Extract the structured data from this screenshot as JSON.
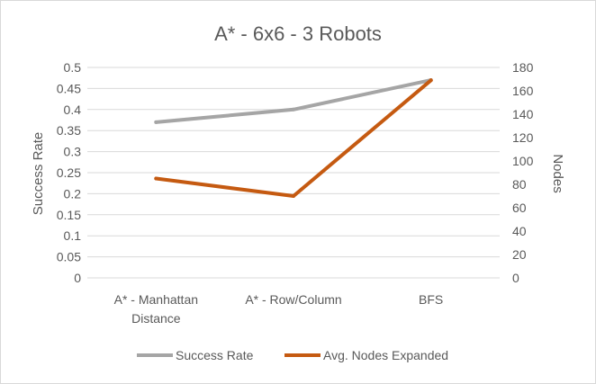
{
  "chart_data": {
    "type": "line",
    "title": "A* - 6x6 - 3 Robots",
    "categories": [
      [
        "A* - Manhattan",
        "Distance"
      ],
      [
        "A* - Row/Column"
      ],
      [
        "BFS"
      ]
    ],
    "series": [
      {
        "name": "Success Rate",
        "axis": "left",
        "color": "#A5A5A5",
        "values": [
          0.37,
          0.4,
          0.47
        ]
      },
      {
        "name": "Avg. Nodes Expanded",
        "axis": "right",
        "color": "#C55A11",
        "values": [
          85,
          70,
          169
        ]
      }
    ],
    "y_left": {
      "label": "Success Rate",
      "ylim": [
        0,
        0.5
      ],
      "ticks": [
        "0",
        "0.05",
        "0.1",
        "0.15",
        "0.2",
        "0.25",
        "0.3",
        "0.35",
        "0.4",
        "0.45",
        "0.5"
      ]
    },
    "y_right": {
      "label": "Nodes",
      "ylim": [
        0,
        180
      ],
      "ticks": [
        "0",
        "20",
        "40",
        "60",
        "80",
        "100",
        "120",
        "140",
        "160",
        "180"
      ]
    },
    "grid": true,
    "legend": "bottom"
  }
}
